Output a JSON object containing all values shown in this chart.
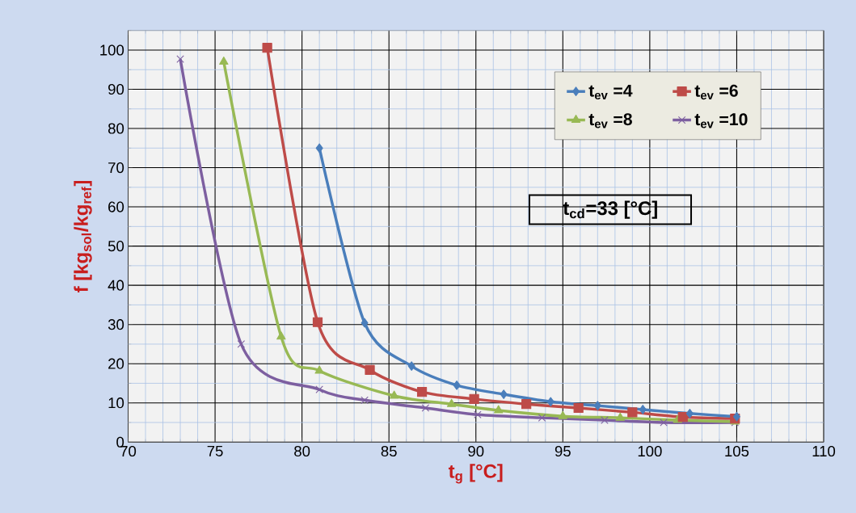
{
  "chart_data": {
    "type": "line",
    "xlabel": "t$_{g}$ [°C]",
    "ylabel": "f  [kg$_{sol}$/kg$_{ref}$]",
    "xlim": [
      70,
      110
    ],
    "ylim": [
      0,
      105
    ],
    "xticks": [
      70,
      {
        "value": 71,
        "label": null
      },
      {
        "value": 72,
        "label": null
      },
      {
        "value": 73,
        "label": null
      },
      {
        "value": 74,
        "label": null
      },
      75,
      {
        "value": 76,
        "label": null
      },
      {
        "value": 77,
        "label": null
      },
      {
        "value": 78,
        "label": null
      },
      {
        "value": 79,
        "label": null
      },
      80,
      {
        "value": 81,
        "label": null
      },
      {
        "value": 82,
        "label": null
      },
      {
        "value": 83,
        "label": null
      },
      {
        "value": 84,
        "label": null
      },
      85,
      {
        "value": 86,
        "label": null
      },
      {
        "value": 87,
        "label": null
      },
      {
        "value": 88,
        "label": null
      },
      {
        "value": 89,
        "label": null
      },
      90,
      {
        "value": 91,
        "label": null
      },
      {
        "value": 92,
        "label": null
      },
      {
        "value": 93,
        "label": null
      },
      {
        "value": 94,
        "label": null
      },
      95,
      {
        "value": 96,
        "label": null
      },
      {
        "value": 97,
        "label": null
      },
      {
        "value": 98,
        "label": null
      },
      {
        "value": 99,
        "label": null
      },
      100,
      {
        "value": 101,
        "label": null
      },
      {
        "value": 102,
        "label": null
      },
      {
        "value": 103,
        "label": null
      },
      {
        "value": 104,
        "label": null
      },
      105,
      {
        "value": 106,
        "label": null
      },
      {
        "value": 107,
        "label": null
      },
      {
        "value": 108,
        "label": null
      },
      {
        "value": 109,
        "label": null
      },
      110
    ],
    "yticks": [
      0,
      {
        "value": 5,
        "label": null
      },
      10,
      {
        "value": 15,
        "label": null
      },
      20,
      {
        "value": 25,
        "label": null
      },
      30,
      {
        "value": 35,
        "label": null
      },
      40,
      {
        "value": 45,
        "label": null
      },
      50,
      {
        "value": 55,
        "label": null
      },
      60,
      {
        "value": 65,
        "label": null
      },
      70,
      {
        "value": 75,
        "label": null
      },
      80,
      {
        "value": 85,
        "label": null
      },
      90,
      {
        "value": 95,
        "label": null
      },
      100,
      {
        "value": 105,
        "label": null
      }
    ],
    "grid": true,
    "legend": "top right",
    "annotations": [
      "t$_{cd}$=33 [°C]"
    ],
    "series": [
      {
        "name": "t$_{ev}$ =4",
        "color": "#4a7ebb",
        "marker": "diamond",
        "x": [
          81,
          83.6,
          86.3,
          88.9,
          91.6,
          94.3,
          97,
          99.6,
          102.3,
          105
        ],
        "values": [
          75,
          30.4,
          19.4,
          14.5,
          12.2,
          10.3,
          9.3,
          8.3,
          7.3,
          6.5
        ]
      },
      {
        "name": "t$_{ev}$ =6",
        "color": "#be4b48",
        "marker": "square",
        "x": [
          78,
          80.9,
          83.9,
          86.9,
          89.9,
          92.9,
          95.9,
          99,
          101.9,
          104.9
        ],
        "values": [
          100.6,
          30.6,
          18.4,
          12.8,
          11,
          9.7,
          8.7,
          7.6,
          6.4,
          6
        ]
      },
      {
        "name": "t$_{ev}$ =8",
        "color": "#98b954",
        "marker": "triangle",
        "x": [
          75.5,
          78.8,
          81,
          85.3,
          88.6,
          91.3,
          95,
          98.3,
          101.6,
          104.9
        ],
        "values": [
          97,
          26.9,
          18.2,
          11.8,
          9.7,
          8.1,
          6.6,
          6.2,
          5.6,
          5.2
        ]
      },
      {
        "name": "t$_{ev}$ =10",
        "color": "#7d5fa0",
        "marker": "cross",
        "x": [
          73,
          76.5,
          81,
          83.6,
          87.1,
          90.1,
          93.8,
          97.4,
          100.8,
          104.9
        ],
        "values": [
          97.7,
          25,
          13.4,
          10.7,
          8.7,
          7,
          6.2,
          5.6,
          5,
          5
        ]
      }
    ]
  }
}
